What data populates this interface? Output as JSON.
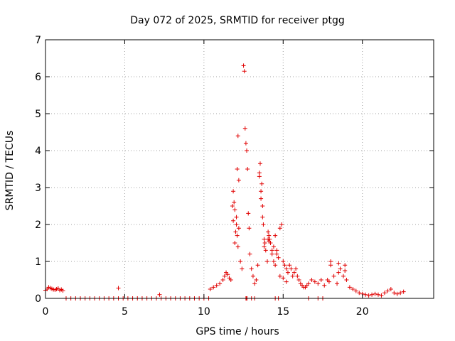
{
  "chart_data": {
    "type": "scatter",
    "title": "Day 072 of 2025, SRMTID for receiver ptgg",
    "xlabel": "GPS time / hours",
    "ylabel": "SRMTID / TECUs",
    "xlim": [
      0,
      24.5
    ],
    "ylim": [
      0,
      7
    ],
    "x_ticks": [
      0,
      5,
      10,
      15,
      20
    ],
    "y_ticks": [
      0,
      1,
      2,
      3,
      4,
      5,
      6,
      7
    ],
    "grid": true,
    "marker": "+",
    "color": "#e00000",
    "series": [
      {
        "name": "SRMTID",
        "x": [
          0.0,
          0.1,
          0.2,
          0.3,
          0.4,
          0.5,
          0.6,
          0.7,
          0.8,
          0.9,
          1.0,
          1.1,
          1.3,
          1.6,
          1.9,
          2.2,
          2.5,
          2.8,
          3.1,
          3.4,
          3.7,
          4.0,
          4.3,
          4.6,
          4.9,
          5.2,
          5.5,
          5.8,
          6.1,
          6.4,
          6.7,
          7.0,
          7.3,
          7.6,
          7.9,
          8.2,
          8.5,
          8.8,
          9.1,
          9.4,
          9.7,
          10.0,
          10.3,
          4.6,
          7.2,
          10.4,
          10.6,
          10.8,
          11.0,
          11.2,
          11.3,
          11.4,
          11.5,
          11.6,
          11.7,
          11.8,
          11.85,
          11.9,
          11.95,
          12.0,
          12.05,
          12.1,
          12.15,
          12.2,
          12.3,
          12.4,
          12.5,
          12.55,
          12.6,
          12.65,
          12.7,
          12.75,
          12.8,
          12.85,
          12.9,
          13.0,
          13.1,
          13.2,
          13.3,
          13.4,
          13.5,
          13.55,
          13.6,
          13.65,
          13.7,
          13.75,
          13.8,
          13.85,
          13.9,
          14.0,
          14.05,
          14.1,
          14.15,
          14.2,
          14.3,
          14.4,
          14.5,
          14.6,
          14.7,
          14.8,
          14.9,
          15.0,
          15.1,
          15.2,
          15.3,
          15.4,
          15.5,
          15.6,
          15.7,
          15.8,
          15.9,
          16.0,
          16.1,
          16.2,
          16.3,
          16.4,
          16.5,
          16.6,
          16.8,
          17.0,
          17.2,
          17.4,
          17.6,
          17.8,
          17.9,
          18.0,
          18.2,
          18.4,
          18.5,
          18.6,
          18.8,
          18.9,
          19.0,
          19.2,
          19.4,
          19.6,
          19.8,
          20.0,
          20.2,
          20.4,
          20.6,
          20.8,
          21.0,
          21.2,
          21.4,
          21.6,
          21.8,
          22.0,
          22.2,
          22.4,
          22.6,
          12.65,
          12.7,
          12.72,
          13.0,
          13.2,
          14.5,
          14.7,
          17.2,
          17.5,
          16.6,
          11.85,
          11.95,
          12.05,
          12.1,
          12.15,
          12.2,
          13.5,
          13.6,
          13.7,
          13.8,
          14.05,
          14.1,
          14.3,
          14.4,
          14.5,
          14.6,
          18.0,
          18.5,
          18.9,
          14.8,
          15.0,
          15.2
        ],
        "y": [
          0.22,
          0.25,
          0.3,
          0.28,
          0.26,
          0.24,
          0.23,
          0.25,
          0.27,
          0.22,
          0.24,
          0.21,
          0,
          0,
          0,
          0,
          0,
          0,
          0,
          0,
          0,
          0,
          0,
          0,
          0,
          0,
          0,
          0,
          0,
          0,
          0,
          0,
          0,
          0,
          0,
          0,
          0,
          0,
          0,
          0,
          0,
          0,
          0,
          0.28,
          0.1,
          0.25,
          0.3,
          0.35,
          0.4,
          0.5,
          0.6,
          0.7,
          0.65,
          0.55,
          0.5,
          2.5,
          2.9,
          2.6,
          1.5,
          1.8,
          2.0,
          3.5,
          4.4,
          3.2,
          1.0,
          0.8,
          6.3,
          6.15,
          4.6,
          4.2,
          4.0,
          3.5,
          2.3,
          1.9,
          1.2,
          0.8,
          0.6,
          0.4,
          0.5,
          0.9,
          3.4,
          3.65,
          2.9,
          3.1,
          2.5,
          2.0,
          1.6,
          1.5,
          1.3,
          1.0,
          1.8,
          1.7,
          1.6,
          1.5,
          1.2,
          1.0,
          0.9,
          1.3,
          1.1,
          1.9,
          2.0,
          1.0,
          0.9,
          0.8,
          0.7,
          0.9,
          0.8,
          0.6,
          0.7,
          0.8,
          0.6,
          0.5,
          0.4,
          0.35,
          0.3,
          0.3,
          0.35,
          0.4,
          0.5,
          0.45,
          0.4,
          0.5,
          0.35,
          0.5,
          0.45,
          0.9,
          0.6,
          0.4,
          0.95,
          0.8,
          0.6,
          0.9,
          0.5,
          0.3,
          0.25,
          0.2,
          0.15,
          0.12,
          0.1,
          0.08,
          0.1,
          0.12,
          0.1,
          0.08,
          0.15,
          0.2,
          0.25,
          0.15,
          0.12,
          0.15,
          0.18,
          0,
          0,
          0,
          0,
          0,
          0,
          0,
          0,
          0,
          0,
          2.1,
          2.4,
          2.2,
          1.7,
          1.4,
          1.9,
          3.3,
          2.7,
          2.2,
          1.4,
          1.6,
          1.55,
          1.3,
          1.4,
          1.7,
          1.2,
          1.0,
          0.7,
          0.75,
          0.6,
          0.55,
          0.45
        ]
      }
    ]
  }
}
